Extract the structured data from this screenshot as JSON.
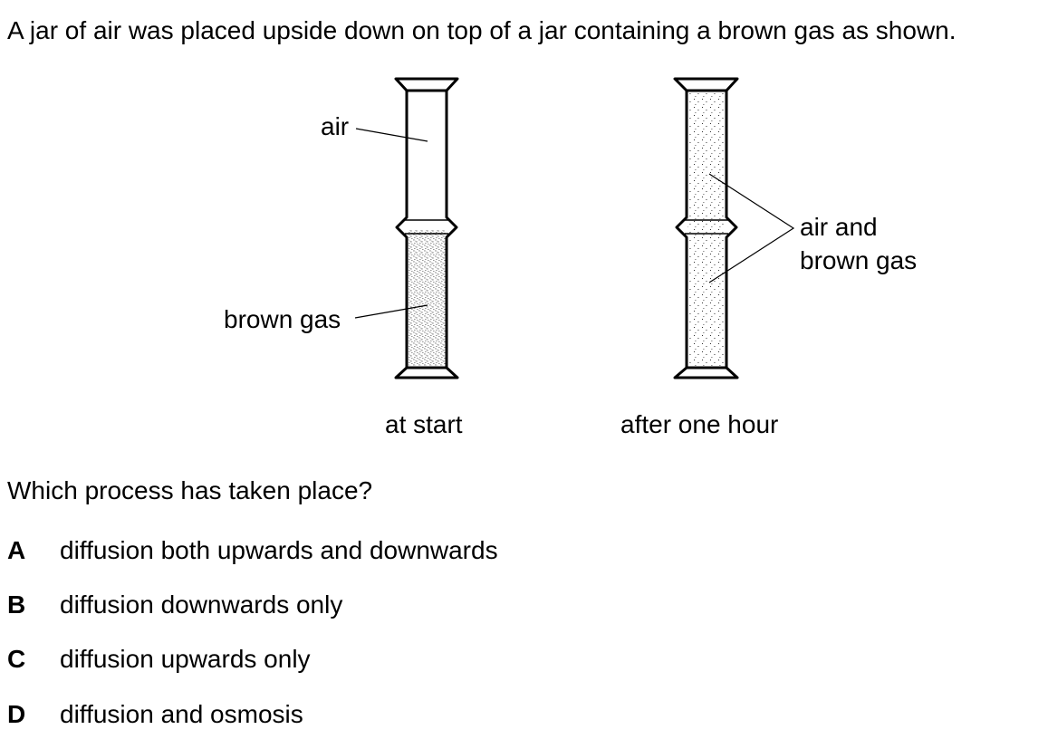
{
  "intro": "A jar of air was placed upside down on top of a jar containing a brown gas as shown.",
  "diagram": {
    "label_air": "air",
    "label_brown_gas": "brown gas",
    "label_mixed_line1": "air and",
    "label_mixed_line2": "brown gas",
    "caption_start": "at start",
    "caption_after": "after one hour"
  },
  "question": "Which process has taken place?",
  "options": [
    {
      "letter": "A",
      "text": "diffusion both upwards and downwards"
    },
    {
      "letter": "B",
      "text": "diffusion downwards only"
    },
    {
      "letter": "C",
      "text": "diffusion upwards only"
    },
    {
      "letter": "D",
      "text": "diffusion and osmosis"
    }
  ]
}
